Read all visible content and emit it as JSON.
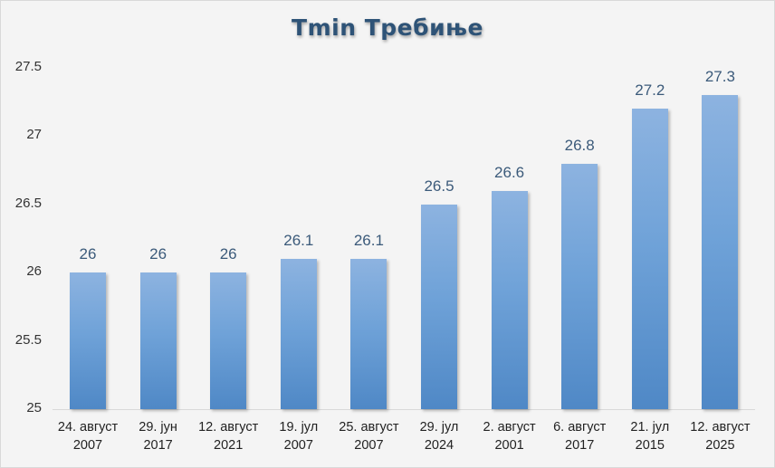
{
  "chart_data": {
    "type": "bar",
    "title": "Tmin Требиње",
    "xlabel": "",
    "ylabel": "",
    "ylim": [
      25,
      27.5
    ],
    "yticks": [
      "27.5",
      "27",
      "26.5",
      "26",
      "25.5",
      "25"
    ],
    "grid": false,
    "legend": null,
    "categories": [
      {
        "line1": "24. август",
        "line2": "2007"
      },
      {
        "line1": "29. јун",
        "line2": "2017"
      },
      {
        "line1": "12. август",
        "line2": "2021"
      },
      {
        "line1": "19. јул",
        "line2": "2007"
      },
      {
        "line1": "25. август",
        "line2": "2007"
      },
      {
        "line1": "29. јул",
        "line2": "2024"
      },
      {
        "line1": "2. август",
        "line2": "2001"
      },
      {
        "line1": "6. август",
        "line2": "2017"
      },
      {
        "line1": "21. јул",
        "line2": "2015"
      },
      {
        "line1": "12. август",
        "line2": "2025"
      }
    ],
    "values": [
      26,
      26,
      26,
      26.1,
      26.1,
      26.5,
      26.6,
      26.8,
      27.2,
      27.3
    ],
    "value_labels": [
      "26",
      "26",
      "26",
      "26.1",
      "26.1",
      "26.5",
      "26.6",
      "26.8",
      "27.2",
      "27.3"
    ],
    "colors": {
      "bar_top": "#8db3e0",
      "bar_bottom": "#4f88c6",
      "title": "#2e5377",
      "value_label": "#3b5a7a"
    }
  }
}
